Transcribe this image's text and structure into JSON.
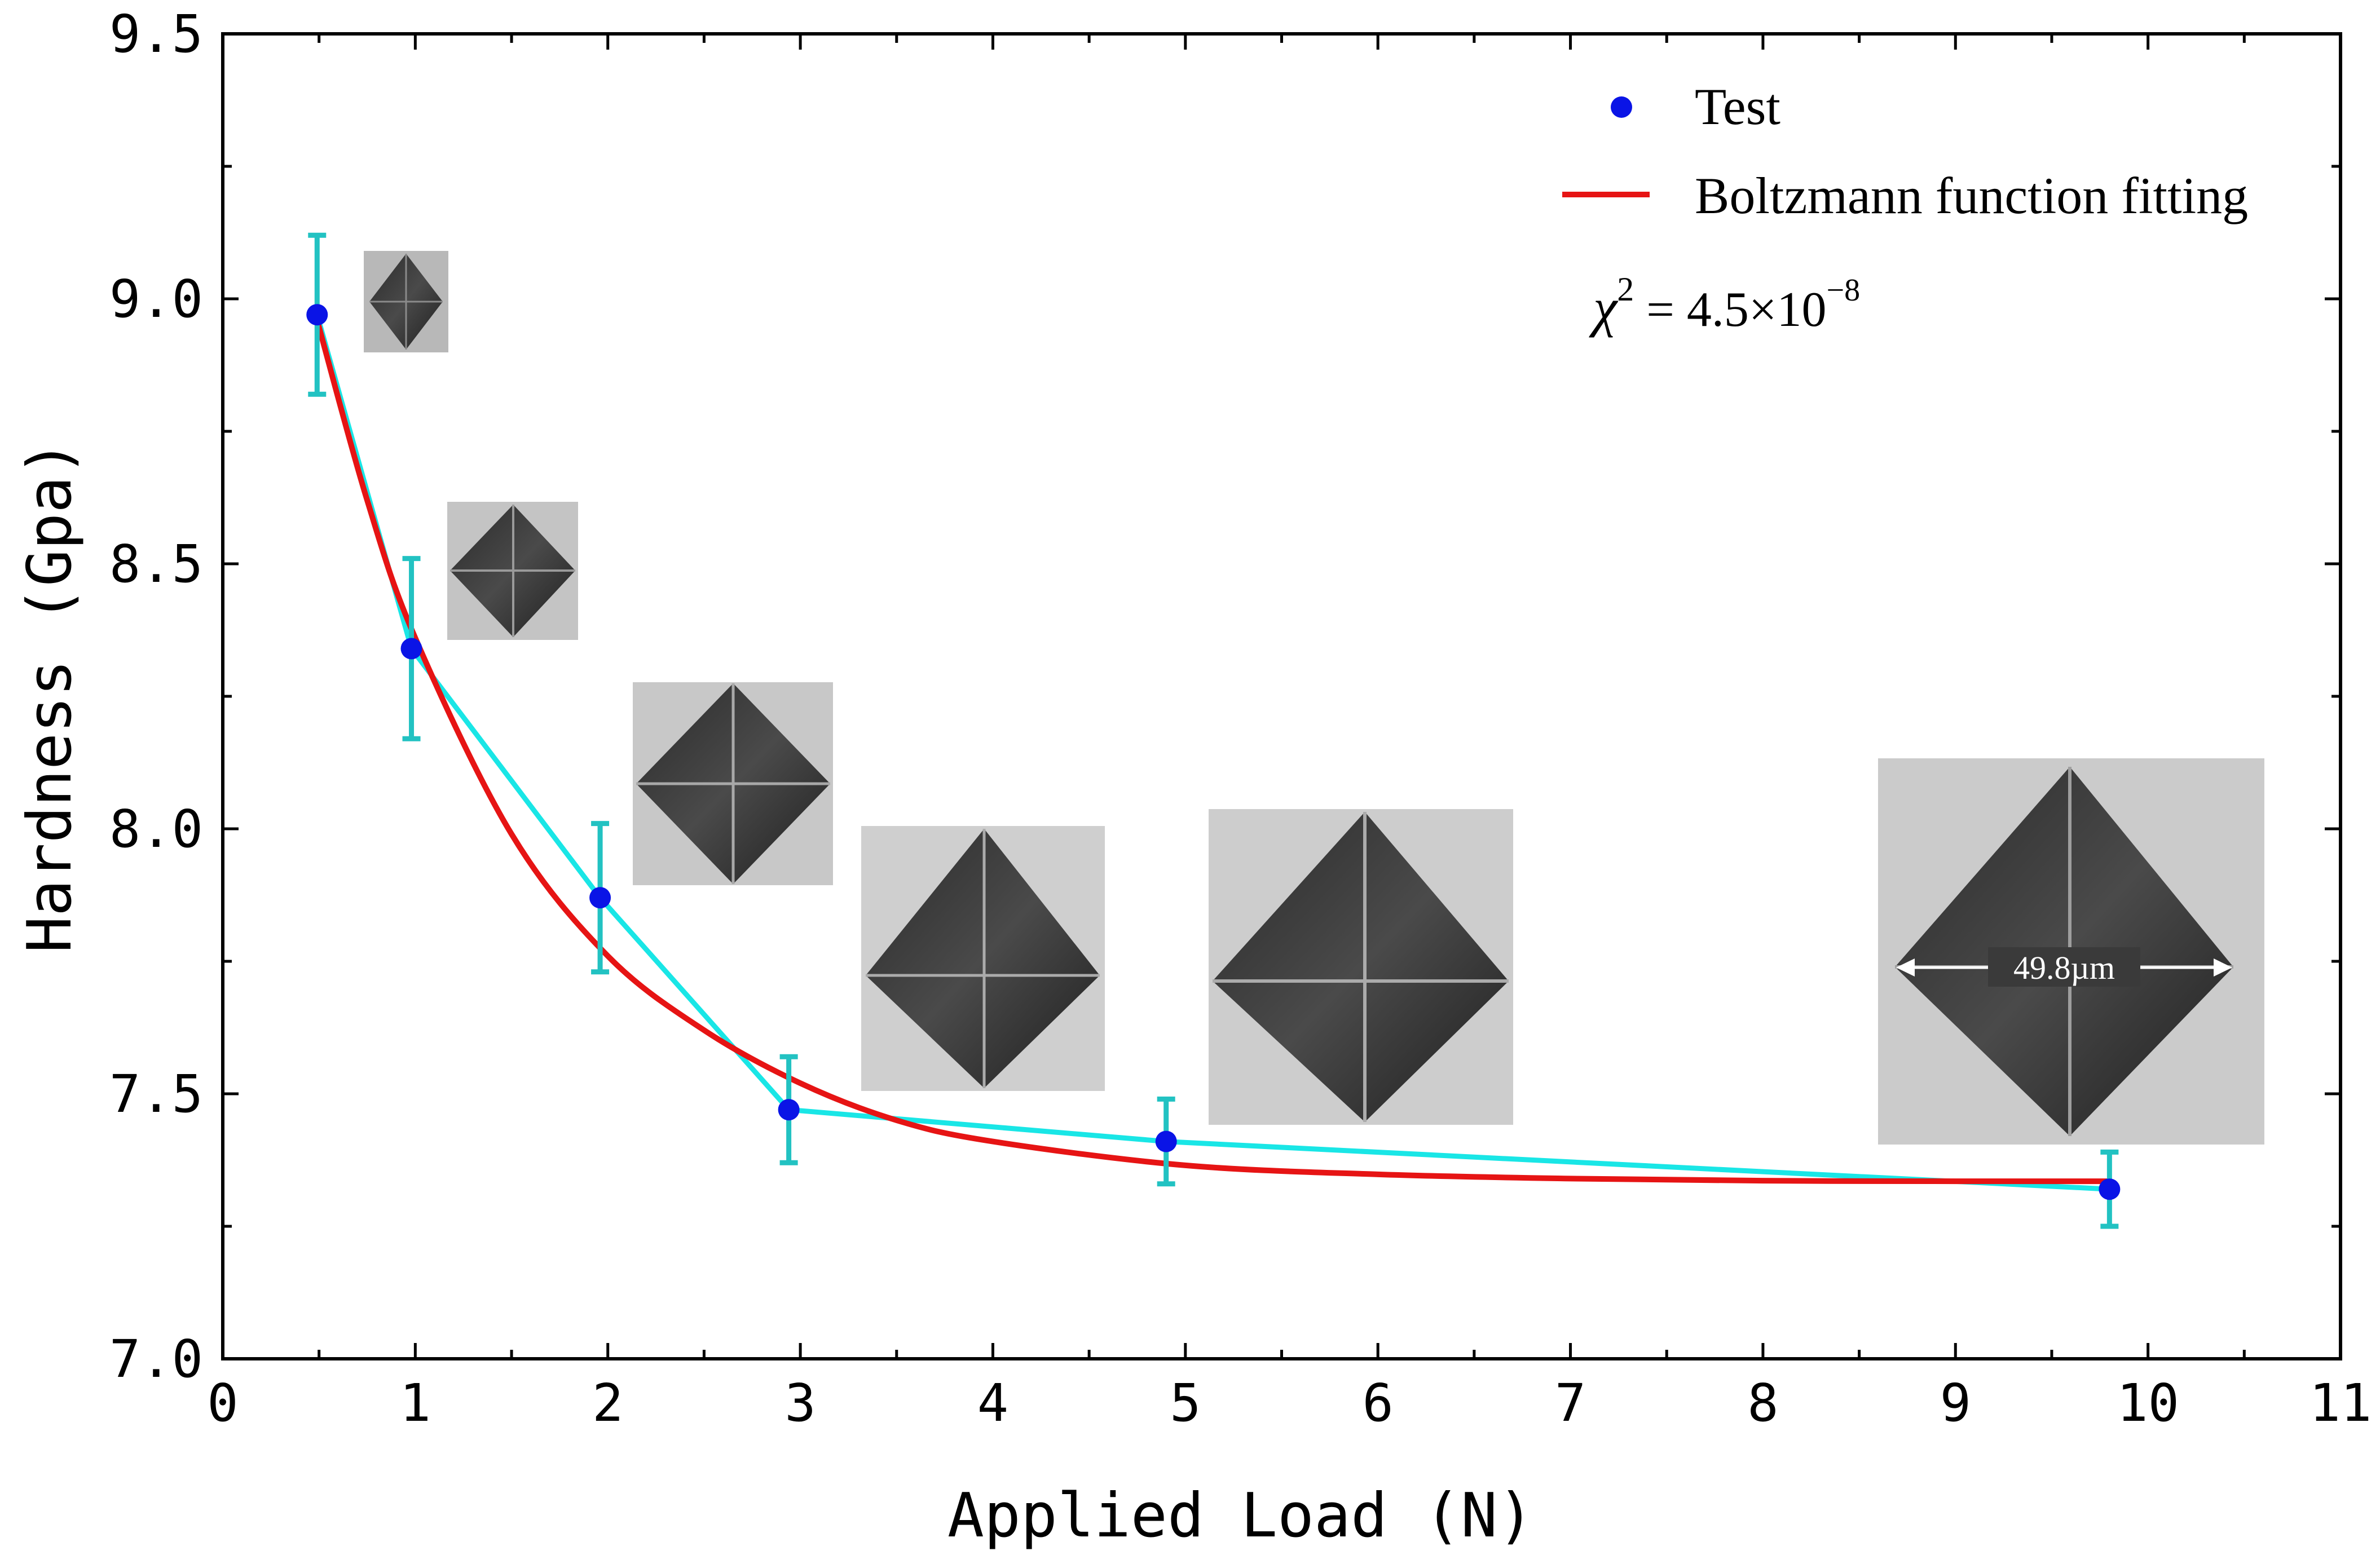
{
  "chart_data": {
    "type": "scatter",
    "xlabel": "Applied Load (N)",
    "ylabel": "Hardness (Gpa)",
    "xlim": [
      0,
      11
    ],
    "ylim": [
      7.0,
      9.5
    ],
    "x_ticks": [
      0,
      1,
      2,
      3,
      4,
      5,
      6,
      7,
      8,
      9,
      10,
      11
    ],
    "x_tick_labels": [
      "0",
      "1",
      "2",
      "3",
      "4",
      "5",
      "6",
      "7",
      "8",
      "9",
      "10",
      "11"
    ],
    "y_ticks": [
      7.0,
      7.5,
      8.0,
      8.5,
      9.0,
      9.5
    ],
    "y_tick_labels": [
      "7.0",
      "7.5",
      "8.0",
      "8.5",
      "9.0",
      "9.5"
    ],
    "grid": false,
    "legend_position": "top-right",
    "series": [
      {
        "name": "Test",
        "kind": "scatter-with-errorbars",
        "color": "#0a14e6",
        "line_color": "#19e6e6",
        "errorbar_color": "#22c2c2",
        "x": [
          0.49,
          0.98,
          1.96,
          2.94,
          4.9,
          9.8
        ],
        "y": [
          8.97,
          8.34,
          7.87,
          7.47,
          7.41,
          7.32
        ],
        "error": [
          0.15,
          0.17,
          0.14,
          0.1,
          0.08,
          0.07
        ]
      },
      {
        "name": "Boltzmann function fitting",
        "kind": "line",
        "color": "#e61414",
        "x": [
          0.49,
          0.75,
          1.0,
          1.5,
          2.0,
          2.5,
          3.0,
          3.5,
          4.0,
          5.0,
          6.0,
          7.0,
          8.0,
          9.0,
          9.8
        ],
        "y": [
          8.96,
          8.62,
          8.36,
          7.99,
          7.76,
          7.62,
          7.52,
          7.45,
          7.41,
          7.365,
          7.348,
          7.34,
          7.336,
          7.335,
          7.335
        ]
      }
    ],
    "annotations": {
      "chi_symbol": "χ",
      "chi_exponent": "2",
      "chi_value": " = 4.5×10",
      "chi_value_exponent": "−8",
      "scale_label": "49.8µm"
    }
  },
  "colors": {
    "axis": "#000000",
    "fit_line": "#e61414",
    "test_points": "#0a14e6",
    "connect_line": "#19e6e6",
    "error_bars": "#22c2c2"
  }
}
